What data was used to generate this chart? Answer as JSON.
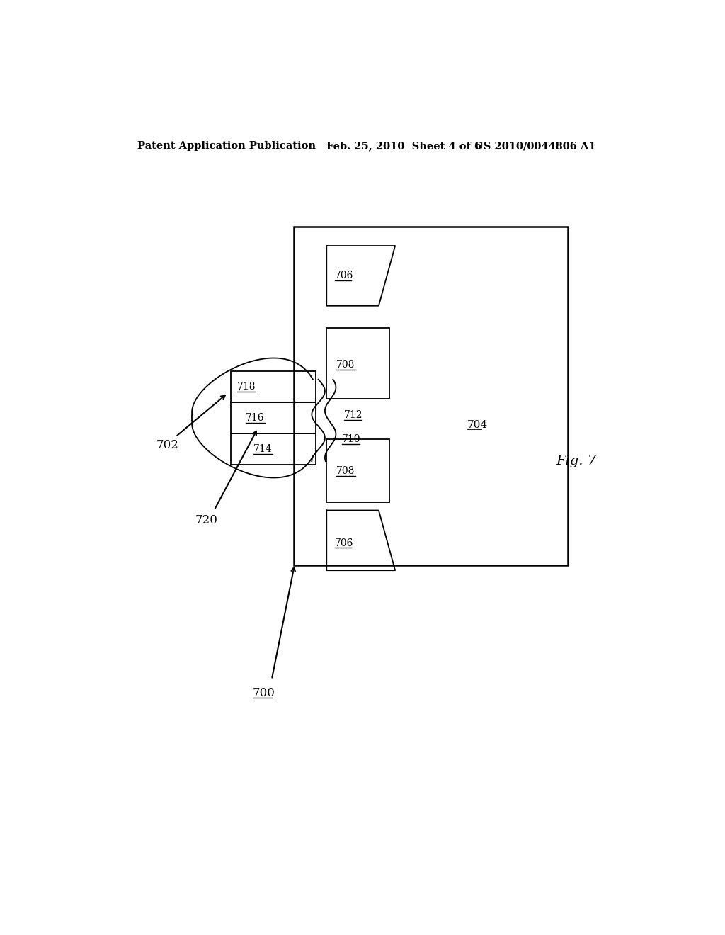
{
  "bg_color": "#ffffff",
  "header_left": "Patent Application Publication",
  "header_mid": "Feb. 25, 2010  Sheet 4 of 6",
  "header_right": "US 2010/0044806 A1",
  "fig_label": "Fig. 7"
}
